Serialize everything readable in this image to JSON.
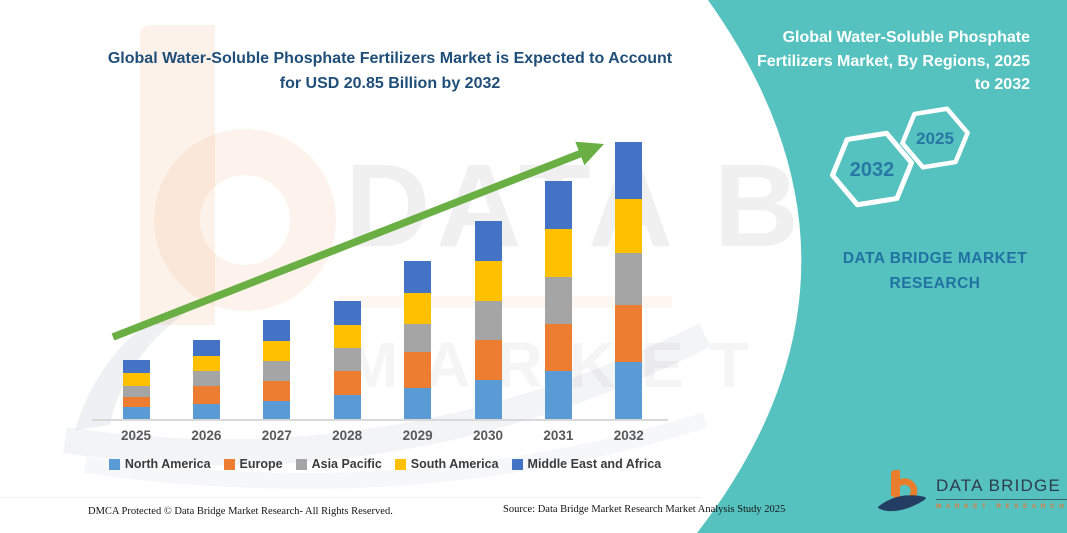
{
  "chart": {
    "title_line1": "Global Water-Soluble Phosphate Fertilizers Market is Expected to",
    "title_line2": "Account for USD 20.85 Billion by 2032",
    "title_color": "#1F4E79",
    "arrow_color": "#69AF44"
  },
  "chart_data": {
    "type": "bar",
    "stacked": true,
    "title": "Global Water-Soluble Phosphate Fertilizers Market is Expected to Account for USD 20.85 Billion by 2032",
    "unit": "USD Billion",
    "categories": [
      "2025",
      "2026",
      "2027",
      "2028",
      "2029",
      "2030",
      "2031",
      "2032"
    ],
    "series": [
      {
        "name": "North America",
        "color": "#5B9BD5",
        "values": [
          0.88,
          1.11,
          1.36,
          1.8,
          2.33,
          2.94,
          3.65,
          4.26
        ]
      },
      {
        "name": "Europe",
        "color": "#ED7D31",
        "values": [
          0.78,
          1.34,
          1.53,
          1.84,
          2.68,
          3.01,
          3.5,
          4.31
        ]
      },
      {
        "name": "Asia Pacific",
        "color": "#A5A5A5",
        "values": [
          0.85,
          1.13,
          1.49,
          1.68,
          2.18,
          2.91,
          3.51,
          3.96
        ]
      },
      {
        "name": "South America",
        "color": "#FFC000",
        "values": [
          0.96,
          1.13,
          1.46,
          1.76,
          2.33,
          3.06,
          3.66,
          4.06
        ]
      },
      {
        "name": "Middle East and Africa",
        "color": "#4472C4",
        "values": [
          0.95,
          1.26,
          1.64,
          1.8,
          2.39,
          3.01,
          3.61,
          4.26
        ]
      }
    ],
    "totals": [
      4.42,
      5.97,
      7.48,
      8.88,
      11.91,
      14.93,
      17.93,
      20.85
    ],
    "grid": false,
    "legend_position": "bottom",
    "trend_arrow": true
  },
  "side_panel": {
    "title_lines": [
      "Global Water-Soluble Phosphate",
      "Fertilizers Market, By Regions, 2025",
      "to 2032"
    ],
    "hexagon_back_year": "2032",
    "hexagon_front_year": "2025",
    "brand_lines": [
      "DATA BRIDGE MARKET",
      "RESEARCH"
    ],
    "panel_color": "#55C2BF",
    "year_text_color": "#2878A5"
  },
  "logo": {
    "title": "DATA BRIDGE",
    "subtitle": "MARKET RESEARCH",
    "orange": "#E87E2B",
    "navy": "#233D63"
  },
  "footer": {
    "dmca": "DMCA Protected © Data Bridge Market Research-  All Rights Reserved.",
    "source": "Source: Data Bridge Market Research  Market Analysis Study 2025"
  }
}
